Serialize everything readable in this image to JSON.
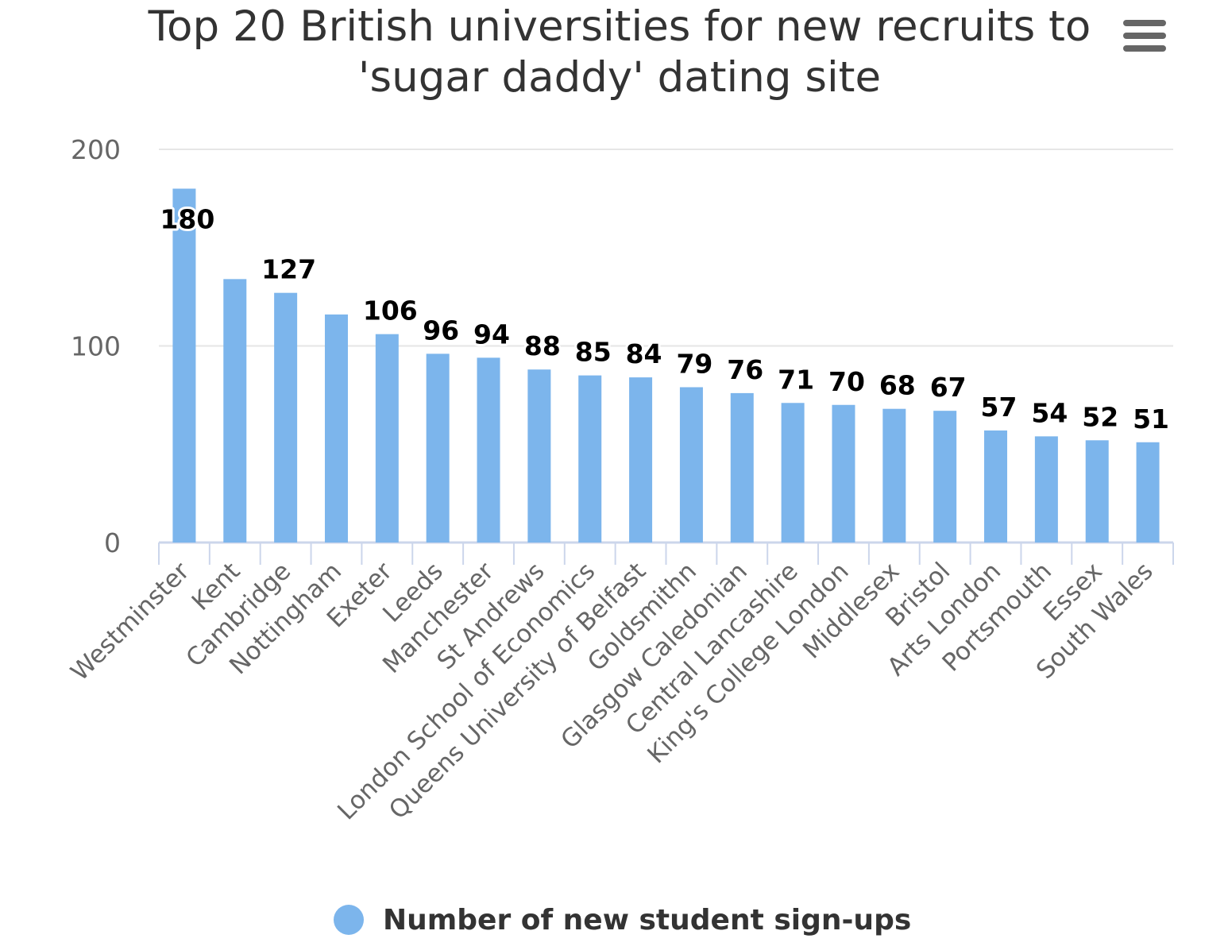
{
  "menu": {
    "icon": "hamburger-menu-icon"
  },
  "chart_data": {
    "type": "bar",
    "title": "Top 20 British universities for new recruits to 'sugar daddy' dating site",
    "xlabel": "",
    "ylabel": "",
    "ylim": [
      0,
      200
    ],
    "yticks": [
      0,
      100,
      200
    ],
    "grid": true,
    "legend_position": "bottom-center",
    "categories": [
      "Westminster",
      "Kent",
      "Cambridge",
      "Nottingham",
      "Exeter",
      "Leeds",
      "Manchester",
      "St Andrews",
      "London School of Economics",
      "Queens University of Belfast",
      "Goldsmithn",
      "Glasgow Caledonian",
      "Central Lancashire",
      "King's College London",
      "Middlesex",
      "Bristol",
      "Arts London",
      "Portsmouth",
      "Essex",
      "South Wales"
    ],
    "series": [
      {
        "name": "Number of new student sign-ups",
        "color": "#7cb5ec",
        "values": [
          180,
          134,
          127,
          116,
          106,
          96,
          94,
          88,
          85,
          84,
          79,
          76,
          71,
          70,
          68,
          67,
          57,
          54,
          52,
          51
        ],
        "data_labels": [
          "180",
          "",
          "127",
          "",
          "106",
          "96",
          "94",
          "88",
          "85",
          "84",
          "79",
          "76",
          "71",
          "70",
          "68",
          "67",
          "57",
          "54",
          "52",
          "51"
        ]
      }
    ]
  }
}
